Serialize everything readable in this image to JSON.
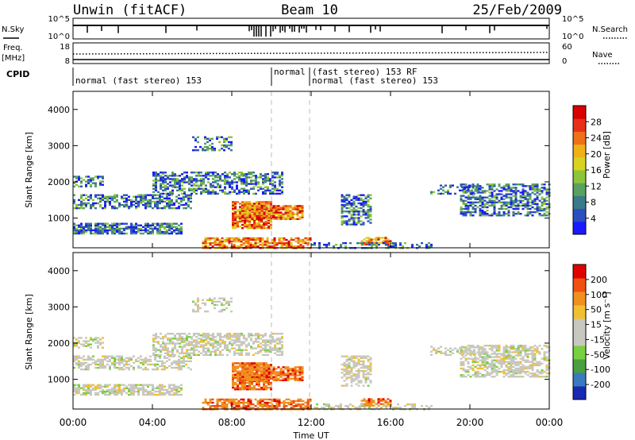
{
  "header": {
    "station": "Unwin (fitACF)",
    "beam": "Beam 10",
    "date": "25/Feb/2009"
  },
  "panels": {
    "nsky_label": "N.Sky",
    "nsearch_label": "N.Search",
    "nsky_ticks": [
      "10^5",
      "10^0"
    ],
    "nsearch_ticks": [
      "10^5",
      "10^0"
    ],
    "freq_label_1": "Freq.",
    "freq_label_2": "[MHz]",
    "freq_ticks": [
      "18",
      "8"
    ],
    "nave_label": "Nave",
    "nave_ticks": [
      "60",
      "0"
    ],
    "cpid_label": "CPID",
    "cpid_segments": [
      {
        "label": "normal (fast stereo) 153",
        "row": 1
      },
      {
        "label": "normal",
        "row": 0
      },
      {
        "label": "(fast stereo) 153 RF",
        "row": 0
      },
      {
        "label": "normal (fast stereo) 153",
        "row": 1
      }
    ]
  },
  "chart_data": [
    {
      "type": "heatmap",
      "ylabel": "Slant Range [km]",
      "yticks": [
        "1000",
        "2000",
        "3000",
        "4000"
      ],
      "ylim": [
        180,
        4500
      ],
      "colorbar": {
        "label": "Power [dB]",
        "ticks": [
          "4",
          "8",
          "12",
          "16",
          "20",
          "24",
          "28"
        ],
        "colors": [
          "#1a1aff",
          "#2b4fbf",
          "#3a7a8a",
          "#5aa060",
          "#8ec43c",
          "#d8d220",
          "#f0b018",
          "#f07018",
          "#e83018",
          "#d80000"
        ]
      }
    },
    {
      "type": "heatmap",
      "ylabel": "Slant Range [km]",
      "yticks": [
        "1000",
        "2000",
        "3000",
        "4000"
      ],
      "ylim": [
        180,
        4500
      ],
      "colorbar": {
        "label": "Velocity [m s⁻¹]",
        "ticks": [
          "200",
          "100",
          "50",
          "15",
          "-15",
          "-50",
          "-100",
          "-200"
        ],
        "colors": [
          "#1a2ab0",
          "#3a7ac0",
          "#4aa040",
          "#78d040",
          "#c8c8c0",
          "#c8c8c0",
          "#f0c030",
          "#f09020",
          "#f05010",
          "#e00000"
        ]
      }
    }
  ],
  "x_axis": {
    "ticks": [
      "00:00",
      "04:00",
      "08:00",
      "12:00",
      "16:00",
      "20:00",
      "00:00"
    ],
    "label": "Time UT"
  }
}
